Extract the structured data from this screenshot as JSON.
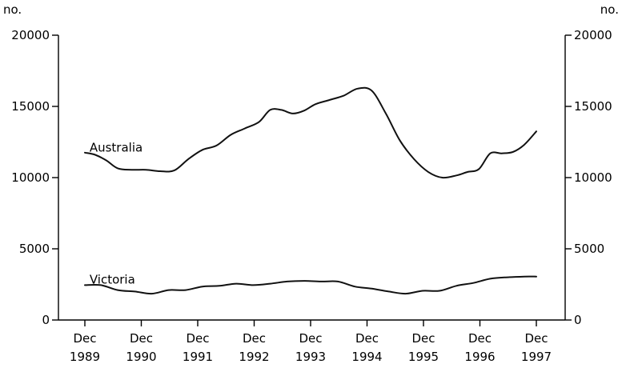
{
  "chart_data": {
    "type": "line",
    "y_unit_left": "no.",
    "y_unit_right": "no.",
    "ylim": [
      0,
      20000
    ],
    "yticks": [
      0,
      5000,
      10000,
      15000,
      20000
    ],
    "ytick_labels": [
      "0",
      "5000",
      "10000",
      "15000",
      "20000"
    ],
    "xlim": [
      1989.917,
      1997.917
    ],
    "xticks": [
      {
        "x": 1989.917,
        "line1": "Dec",
        "line2": "1989"
      },
      {
        "x": 1990.917,
        "line1": "Dec",
        "line2": "1990"
      },
      {
        "x": 1991.917,
        "line1": "Dec",
        "line2": "1991"
      },
      {
        "x": 1992.917,
        "line1": "Dec",
        "line2": "1992"
      },
      {
        "x": 1993.917,
        "line1": "Dec",
        "line2": "1993"
      },
      {
        "x": 1994.917,
        "line1": "Dec",
        "line2": "1994"
      },
      {
        "x": 1995.917,
        "line1": "Dec",
        "line2": "1995"
      },
      {
        "x": 1996.917,
        "line1": "Dec",
        "line2": "1996"
      },
      {
        "x": 1997.917,
        "line1": "Dec",
        "line2": "1997"
      }
    ],
    "grid": false,
    "series": [
      {
        "name": "Australia",
        "label_x": 1990.0,
        "label_y": 12100,
        "x": [
          1989.917,
          1990.1,
          1990.3,
          1990.5,
          1990.75,
          1991.0,
          1991.25,
          1991.5,
          1991.75,
          1992.0,
          1992.25,
          1992.5,
          1992.75,
          1993.0,
          1993.2,
          1993.4,
          1993.6,
          1993.8,
          1994.0,
          1994.25,
          1994.5,
          1994.75,
          1995.0,
          1995.25,
          1995.5,
          1995.75,
          1996.0,
          1996.25,
          1996.5,
          1996.7,
          1996.9,
          1997.1,
          1997.3,
          1997.5,
          1997.7,
          1997.917
        ],
        "values": [
          11750,
          11600,
          11200,
          10650,
          10550,
          10550,
          10450,
          10500,
          11300,
          11950,
          12250,
          13000,
          13450,
          13900,
          14750,
          14750,
          14500,
          14700,
          15150,
          15450,
          15750,
          16250,
          16100,
          14500,
          12600,
          11300,
          10400,
          10000,
          10150,
          10400,
          10600,
          11700,
          11700,
          11800,
          12300,
          13250
        ]
      },
      {
        "name": "Victoria",
        "label_x": 1990.0,
        "label_y": 2850,
        "x": [
          1989.917,
          1990.2,
          1990.5,
          1990.8,
          1991.1,
          1991.4,
          1991.7,
          1992.0,
          1992.3,
          1992.6,
          1992.9,
          1993.2,
          1993.5,
          1993.8,
          1994.1,
          1994.4,
          1994.7,
          1995.0,
          1995.3,
          1995.6,
          1995.9,
          1996.2,
          1996.5,
          1996.8,
          1997.1,
          1997.4,
          1997.7,
          1997.917
        ],
        "values": [
          2450,
          2450,
          2100,
          2000,
          1850,
          2100,
          2100,
          2350,
          2400,
          2550,
          2450,
          2550,
          2700,
          2750,
          2700,
          2700,
          2350,
          2200,
          2000,
          1850,
          2050,
          2050,
          2400,
          2600,
          2900,
          3000,
          3050,
          3050
        ]
      }
    ]
  }
}
